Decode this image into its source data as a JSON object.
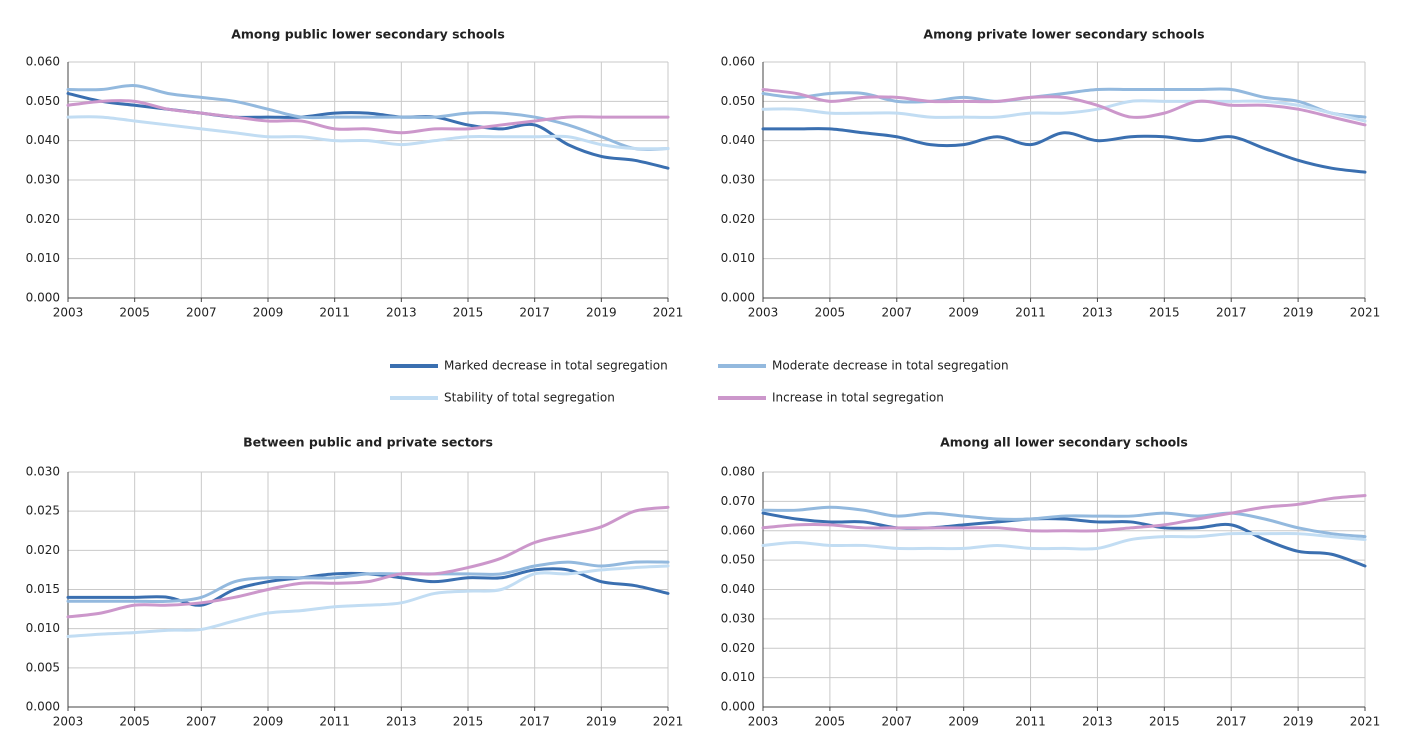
{
  "chart_data": [
    {
      "type": "line",
      "title": "Among public lower secondary schools",
      "x": [
        2003,
        2004,
        2005,
        2006,
        2007,
        2008,
        2009,
        2010,
        2011,
        2012,
        2013,
        2014,
        2015,
        2016,
        2017,
        2018,
        2019,
        2020,
        2021
      ],
      "xlim": [
        2003,
        2021
      ],
      "xticks": [
        2003,
        2005,
        2007,
        2009,
        2011,
        2013,
        2015,
        2017,
        2019,
        2021
      ],
      "ylim": [
        0,
        0.06
      ],
      "yticks": [
        {
          "value": 0,
          "label": "0.000"
        },
        {
          "value": 0.01,
          "label": "0.010"
        },
        {
          "value": 0.02,
          "label": "0.020"
        },
        {
          "value": 0.03,
          "label": "0.030"
        },
        {
          "value": 0.04,
          "label": "0.040"
        },
        {
          "value": 0.05,
          "label": "0.050"
        },
        {
          "value": 0.06,
          "label": "0.060"
        }
      ],
      "grid": true,
      "series": [
        {
          "name": "Marked decrease in total segregation",
          "color": "#3a6fb0",
          "values": [
            0.052,
            0.05,
            0.049,
            0.048,
            0.047,
            0.046,
            0.046,
            0.046,
            0.047,
            0.047,
            0.046,
            0.046,
            0.044,
            0.043,
            0.044,
            0.039,
            0.036,
            0.035,
            0.033
          ]
        },
        {
          "name": "Moderate decrease in total segregation",
          "color": "#93b9de",
          "values": [
            0.053,
            0.053,
            0.054,
            0.052,
            0.051,
            0.05,
            0.048,
            0.046,
            0.046,
            0.046,
            0.046,
            0.046,
            0.047,
            0.047,
            0.046,
            0.044,
            0.041,
            0.038,
            0.038
          ]
        },
        {
          "name": "Stability of total segregation",
          "color": "#c2ddf3",
          "values": [
            0.046,
            0.046,
            0.045,
            0.044,
            0.043,
            0.042,
            0.041,
            0.041,
            0.04,
            0.04,
            0.039,
            0.04,
            0.041,
            0.041,
            0.041,
            0.041,
            0.039,
            0.038,
            0.038
          ]
        },
        {
          "name": "Increase in total segregation",
          "color": "#cc97cb",
          "values": [
            0.049,
            0.05,
            0.05,
            0.048,
            0.047,
            0.046,
            0.045,
            0.045,
            0.043,
            0.043,
            0.042,
            0.043,
            0.043,
            0.044,
            0.045,
            0.046,
            0.046,
            0.046,
            0.046
          ]
        }
      ]
    },
    {
      "type": "line",
      "title": "Among private lower secondary schools",
      "x": [
        2003,
        2004,
        2005,
        2006,
        2007,
        2008,
        2009,
        2010,
        2011,
        2012,
        2013,
        2014,
        2015,
        2016,
        2017,
        2018,
        2019,
        2020,
        2021
      ],
      "xlim": [
        2003,
        2021
      ],
      "xticks": [
        2003,
        2005,
        2007,
        2009,
        2011,
        2013,
        2015,
        2017,
        2019,
        2021
      ],
      "ylim": [
        0,
        0.06
      ],
      "yticks": [
        {
          "value": 0,
          "label": "0.000"
        },
        {
          "value": 0.01,
          "label": "0.010"
        },
        {
          "value": 0.02,
          "label": "0.020"
        },
        {
          "value": 0.03,
          "label": "0.030"
        },
        {
          "value": 0.04,
          "label": "0.040"
        },
        {
          "value": 0.05,
          "label": "0.050"
        },
        {
          "value": 0.06,
          "label": "0.060"
        }
      ],
      "grid": true,
      "series": [
        {
          "name": "Marked decrease in total segregation",
          "color": "#3a6fb0",
          "values": [
            0.043,
            0.043,
            0.043,
            0.042,
            0.041,
            0.039,
            0.039,
            0.041,
            0.039,
            0.042,
            0.04,
            0.041,
            0.041,
            0.04,
            0.041,
            0.038,
            0.035,
            0.033,
            0.032
          ]
        },
        {
          "name": "Moderate decrease in total segregation",
          "color": "#93b9de",
          "values": [
            0.052,
            0.051,
            0.052,
            0.052,
            0.05,
            0.05,
            0.051,
            0.05,
            0.051,
            0.052,
            0.053,
            0.053,
            0.053,
            0.053,
            0.053,
            0.051,
            0.05,
            0.047,
            0.046
          ]
        },
        {
          "name": "Stability of total segregation",
          "color": "#c2ddf3",
          "values": [
            0.048,
            0.048,
            0.047,
            0.047,
            0.047,
            0.046,
            0.046,
            0.046,
            0.047,
            0.047,
            0.048,
            0.05,
            0.05,
            0.05,
            0.05,
            0.05,
            0.049,
            0.047,
            0.045
          ]
        },
        {
          "name": "Increase in total segregation",
          "color": "#cc97cb",
          "values": [
            0.053,
            0.052,
            0.05,
            0.051,
            0.051,
            0.05,
            0.05,
            0.05,
            0.051,
            0.051,
            0.049,
            0.046,
            0.047,
            0.05,
            0.049,
            0.049,
            0.048,
            0.046,
            0.044
          ]
        }
      ]
    },
    {
      "type": "line",
      "title": "Between public and private sectors",
      "x": [
        2003,
        2004,
        2005,
        2006,
        2007,
        2008,
        2009,
        2010,
        2011,
        2012,
        2013,
        2014,
        2015,
        2016,
        2017,
        2018,
        2019,
        2020,
        2021
      ],
      "xlim": [
        2003,
        2021
      ],
      "xticks": [
        2003,
        2005,
        2007,
        2009,
        2011,
        2013,
        2015,
        2017,
        2019,
        2021
      ],
      "ylim": [
        0,
        0.03
      ],
      "yticks": [
        {
          "value": 0,
          "label": "0.000"
        },
        {
          "value": 0.005,
          "label": "0.005"
        },
        {
          "value": 0.01,
          "label": "0.010"
        },
        {
          "value": 0.015,
          "label": "0.015"
        },
        {
          "value": 0.02,
          "label": "0.020"
        },
        {
          "value": 0.025,
          "label": "0.025"
        },
        {
          "value": 0.03,
          "label": "0.030"
        }
      ],
      "grid": true,
      "series": [
        {
          "name": "Marked decrease in total segregation",
          "color": "#3a6fb0",
          "values": [
            0.014,
            0.014,
            0.014,
            0.014,
            0.013,
            0.015,
            0.016,
            0.0165,
            0.017,
            0.017,
            0.0165,
            0.016,
            0.0165,
            0.0165,
            0.0175,
            0.0175,
            0.016,
            0.0155,
            0.0145
          ]
        },
        {
          "name": "Moderate decrease in total segregation",
          "color": "#93b9de",
          "values": [
            0.0135,
            0.0135,
            0.0135,
            0.0135,
            0.014,
            0.016,
            0.0165,
            0.0165,
            0.0165,
            0.017,
            0.017,
            0.017,
            0.017,
            0.017,
            0.018,
            0.0185,
            0.018,
            0.0185,
            0.0185
          ]
        },
        {
          "name": "Stability of total segregation",
          "color": "#c2ddf3",
          "values": [
            0.009,
            0.0093,
            0.0095,
            0.0098,
            0.0099,
            0.011,
            0.012,
            0.0123,
            0.0128,
            0.013,
            0.0133,
            0.0145,
            0.0148,
            0.015,
            0.017,
            0.017,
            0.0175,
            0.0178,
            0.018
          ]
        },
        {
          "name": "Increase in total segregation",
          "color": "#cc97cb",
          "values": [
            0.0115,
            0.012,
            0.013,
            0.013,
            0.0133,
            0.014,
            0.015,
            0.0158,
            0.0158,
            0.016,
            0.017,
            0.017,
            0.0178,
            0.019,
            0.021,
            0.022,
            0.023,
            0.025,
            0.0255
          ]
        }
      ]
    },
    {
      "type": "line",
      "title": "Among all lower secondary schools",
      "x": [
        2003,
        2004,
        2005,
        2006,
        2007,
        2008,
        2009,
        2010,
        2011,
        2012,
        2013,
        2014,
        2015,
        2016,
        2017,
        2018,
        2019,
        2020,
        2021
      ],
      "xlim": [
        2003,
        2021
      ],
      "xticks": [
        2003,
        2005,
        2007,
        2009,
        2011,
        2013,
        2015,
        2017,
        2019,
        2021
      ],
      "ylim": [
        0,
        0.08
      ],
      "yticks": [
        {
          "value": 0,
          "label": "0.000"
        },
        {
          "value": 0.01,
          "label": "0.010"
        },
        {
          "value": 0.02,
          "label": "0.020"
        },
        {
          "value": 0.03,
          "label": "0.030"
        },
        {
          "value": 0.04,
          "label": "0.040"
        },
        {
          "value": 0.05,
          "label": "0.050"
        },
        {
          "value": 0.06,
          "label": "0.060"
        },
        {
          "value": 0.07,
          "label": "0.070"
        },
        {
          "value": 0.08,
          "label": "0.080"
        }
      ],
      "grid": true,
      "series": [
        {
          "name": "Marked decrease in total segregation",
          "color": "#3a6fb0",
          "values": [
            0.066,
            0.064,
            0.063,
            0.063,
            0.061,
            0.061,
            0.062,
            0.063,
            0.064,
            0.064,
            0.063,
            0.063,
            0.061,
            0.061,
            0.062,
            0.057,
            0.053,
            0.052,
            0.048
          ]
        },
        {
          "name": "Moderate decrease in total segregation",
          "color": "#93b9de",
          "values": [
            0.067,
            0.067,
            0.068,
            0.067,
            0.065,
            0.066,
            0.065,
            0.064,
            0.064,
            0.065,
            0.065,
            0.065,
            0.066,
            0.065,
            0.066,
            0.064,
            0.061,
            0.059,
            0.058
          ]
        },
        {
          "name": "Stability of total segregation",
          "color": "#c2ddf3",
          "values": [
            0.055,
            0.056,
            0.055,
            0.055,
            0.054,
            0.054,
            0.054,
            0.055,
            0.054,
            0.054,
            0.054,
            0.057,
            0.058,
            0.058,
            0.059,
            0.059,
            0.059,
            0.058,
            0.057
          ]
        },
        {
          "name": "Increase in total segregation",
          "color": "#cc97cb",
          "values": [
            0.061,
            0.062,
            0.062,
            0.061,
            0.061,
            0.061,
            0.061,
            0.061,
            0.06,
            0.06,
            0.06,
            0.061,
            0.062,
            0.064,
            0.066,
            0.068,
            0.069,
            0.071,
            0.072
          ]
        }
      ]
    }
  ]
}
